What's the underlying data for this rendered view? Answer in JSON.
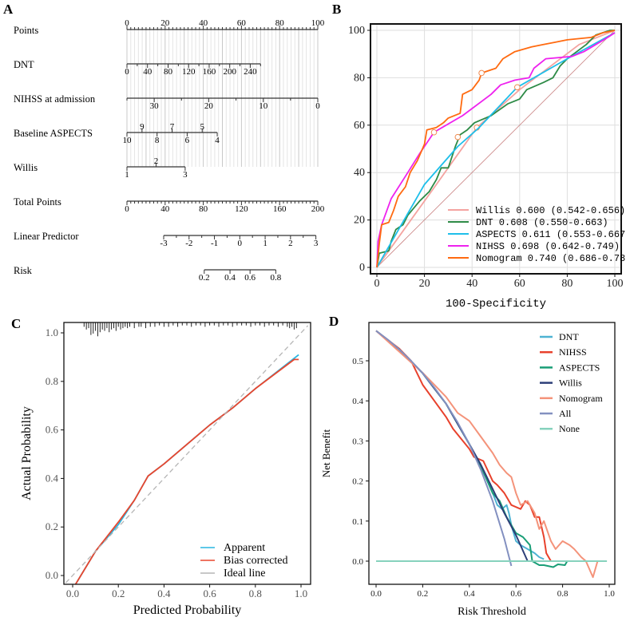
{
  "panels": {
    "a": "A",
    "b": "B",
    "c": "C",
    "d": "D"
  },
  "chart_data": [
    {
      "panel": "A",
      "type": "nomogram",
      "rows": [
        {
          "label": "Points",
          "scale": "points",
          "from": [
            0,
            100
          ],
          "to": [
            0,
            100
          ],
          "ticks_step": 2,
          "labels": [
            0,
            20,
            40,
            60,
            80,
            100
          ],
          "label_side": "above"
        },
        {
          "label": "DNT",
          "scale": "points",
          "from": [
            0,
            260
          ],
          "to": [
            0,
            70
          ],
          "ticks_step": 20,
          "labels": [
            0,
            40,
            80,
            120,
            160,
            200,
            240
          ],
          "label_side": "below"
        },
        {
          "label": "NIHSS at admission",
          "scale": "points",
          "from": [
            35,
            0
          ],
          "to": [
            0,
            100
          ],
          "ticks_step": 5,
          "labels": [
            30,
            20,
            10,
            0
          ],
          "label_side": "below"
        },
        {
          "label": "Baseline ASPECTS",
          "scale": "points",
          "from": [
            10,
            4
          ],
          "to": [
            0,
            47.3
          ],
          "ticks_step": 1,
          "labels": [
            10,
            8,
            6,
            4
          ],
          "labels_above": [
            9,
            7,
            5
          ],
          "label_side": "below"
        },
        {
          "label": "Willis",
          "scale": "points",
          "from": [
            1,
            3
          ],
          "to": [
            0,
            30.5
          ],
          "ticks_step": 1,
          "labels": [
            1,
            3
          ],
          "labels_above": [
            2
          ],
          "label_side": "below"
        },
        {
          "label": "Total Points",
          "scale": "total",
          "from": [
            0,
            200
          ],
          "to": [
            0,
            200
          ],
          "ticks_step": 4,
          "labels": [
            0,
            40,
            80,
            120,
            160,
            200
          ],
          "label_side": "below"
        },
        {
          "label": "Linear Predictor",
          "scale": "total",
          "from": [
            -3,
            3
          ],
          "to": [
            38.5,
            198
          ],
          "ticks_step": 0.5,
          "labels": [
            -3,
            -2,
            -1,
            0,
            1,
            2,
            3
          ],
          "label_side": "below"
        },
        {
          "label": "Risk",
          "scale": "total",
          "ticks_explicit": [
            [
              0.2,
              81
            ],
            [
              0.4,
              108
            ],
            [
              0.6,
              129
            ],
            [
              0.8,
              156
            ]
          ],
          "labels": [
            "0.2",
            "0.4",
            "0.6",
            "0.8"
          ],
          "label_side": "below"
        }
      ]
    },
    {
      "panel": "B",
      "type": "line",
      "xlabel": "100-Specificity",
      "ylabel": "",
      "xlim": [
        0,
        100
      ],
      "ylim": [
        0,
        100
      ],
      "xticks": [
        0,
        20,
        40,
        60,
        80,
        100
      ],
      "yticks": [
        0,
        20,
        40,
        60,
        80,
        100
      ],
      "grid": true,
      "legend_position": "bottom-right",
      "reference_line": {
        "x": [
          0,
          100
        ],
        "y": [
          0,
          100
        ],
        "color": "#c98080"
      },
      "series": [
        {
          "name": "Willis",
          "legend": "Willis 0.600 (0.542-0.656)",
          "color": "#f4a3a0",
          "marker": [
            42,
            59
          ],
          "x": [
            0,
            25,
            42,
            60,
            85,
            100
          ],
          "y": [
            0,
            35,
            59,
            75,
            94,
            100
          ]
        },
        {
          "name": "DNT",
          "legend": "DNT 0.608 (0.550-0.663)",
          "color": "#2e8b47",
          "marker": [
            34,
            55
          ],
          "x": [
            0,
            1,
            5,
            6,
            8,
            11,
            13,
            18,
            22,
            25,
            27,
            30,
            33,
            35,
            38,
            41,
            48,
            55,
            60,
            63,
            70,
            74,
            77,
            80,
            84,
            88,
            92,
            98,
            100
          ],
          "y": [
            0,
            6,
            7,
            11,
            16,
            18,
            22,
            28,
            32,
            37,
            42,
            42,
            51,
            56,
            58,
            61,
            64,
            69,
            71,
            75,
            78,
            80,
            85,
            88,
            91,
            94,
            98,
            100,
            100
          ]
        },
        {
          "name": "ASPECTS",
          "legend": "ASPECTS 0.611 (0.553-0.667)",
          "color": "#1ebfea",
          "marker": [
            59,
            76
          ],
          "x": [
            0,
            20,
            34,
            43,
            59,
            80,
            100
          ],
          "y": [
            0,
            35,
            51,
            59,
            76,
            88,
            99
          ]
        },
        {
          "name": "NIHSS",
          "legend": "NIHSS 0.698 (0.642-0.749)",
          "color": "#ee22ee",
          "marker": [
            24,
            57
          ],
          "x": [
            0,
            0.5,
            2,
            6,
            13,
            18,
            24,
            36,
            48,
            52,
            58,
            64,
            66,
            71,
            82,
            87,
            92,
            97,
            100
          ],
          "y": [
            0,
            11,
            18,
            29,
            40,
            48,
            57,
            64,
            73,
            77,
            79,
            80,
            84,
            88,
            89,
            91,
            94,
            97,
            99
          ]
        },
        {
          "name": "Nomogram",
          "legend": "Nomogram 0.740 (0.686-0.789)",
          "color": "#ff6a10",
          "marker": [
            44,
            82
          ],
          "x": [
            0,
            1,
            2,
            5,
            7,
            9,
            12,
            14,
            17,
            20,
            21,
            25,
            28,
            30,
            35,
            36,
            40,
            43,
            44,
            50,
            53,
            58,
            65,
            70,
            75,
            80,
            90,
            95,
            100
          ],
          "y": [
            0,
            10,
            18,
            19,
            24,
            30,
            34,
            40,
            45,
            52,
            58,
            59,
            61,
            63,
            65,
            73,
            75,
            79,
            82,
            84,
            88,
            91,
            93,
            94,
            95,
            96,
            97,
            99,
            100
          ]
        }
      ]
    },
    {
      "panel": "C",
      "type": "line",
      "xlabel": "Predicted Probability",
      "ylabel": "Actual Probability",
      "xlim": [
        -0.03,
        1.03
      ],
      "ylim": [
        -0.04,
        1.04
      ],
      "xticks": [
        "0.0",
        "0.2",
        "0.4",
        "0.6",
        "0.8",
        "1.0"
      ],
      "yticks": [
        "0.0",
        "0.2",
        "0.4",
        "0.6",
        "0.8",
        "1.0"
      ],
      "grid": false,
      "legend_position": "bottom-right",
      "rug_x": [
        0.05,
        0.06,
        0.07,
        0.08,
        0.09,
        0.1,
        0.11,
        0.12,
        0.13,
        0.14,
        0.15,
        0.16,
        0.17,
        0.18,
        0.19,
        0.2,
        0.21,
        0.22,
        0.23,
        0.24,
        0.25,
        0.27,
        0.29,
        0.3,
        0.32,
        0.34,
        0.36,
        0.38,
        0.4,
        0.42,
        0.44,
        0.46,
        0.48,
        0.5,
        0.52,
        0.54,
        0.56,
        0.58,
        0.6,
        0.62,
        0.64,
        0.66,
        0.68,
        0.7,
        0.72,
        0.74,
        0.76,
        0.78,
        0.8,
        0.82,
        0.84,
        0.86,
        0.88,
        0.9,
        0.92,
        0.94,
        0.95,
        0.96,
        0.97,
        0.98
      ],
      "rug_count": [
        2,
        4,
        3,
        8,
        7,
        5,
        9,
        6,
        4,
        5,
        3,
        6,
        4,
        3,
        5,
        2,
        4,
        3,
        2,
        3,
        2,
        3,
        2,
        2,
        3,
        2,
        2,
        1,
        2,
        2,
        1,
        2,
        1,
        1,
        2,
        1,
        1,
        2,
        1,
        1,
        2,
        1,
        1,
        2,
        1,
        1,
        1,
        2,
        1,
        1,
        2,
        1,
        1,
        2,
        1,
        2,
        3,
        2,
        4,
        3
      ],
      "series": [
        {
          "name": "Apparent",
          "color": "#29b5e0",
          "x": [
            0.01,
            0.1,
            0.2,
            0.27,
            0.33,
            0.4,
            0.5,
            0.6,
            0.7,
            0.8,
            0.99
          ],
          "y": [
            -0.04,
            0.1,
            0.21,
            0.31,
            0.41,
            0.46,
            0.54,
            0.62,
            0.69,
            0.77,
            0.91
          ]
        },
        {
          "name": "Bias corrected",
          "color": "#e8462e",
          "x": [
            0.01,
            0.1,
            0.2,
            0.27,
            0.33,
            0.4,
            0.5,
            0.6,
            0.7,
            0.8,
            0.97,
            0.99
          ],
          "y": [
            -0.04,
            0.1,
            0.22,
            0.31,
            0.41,
            0.46,
            0.54,
            0.62,
            0.69,
            0.77,
            0.89,
            0.89
          ]
        },
        {
          "name": "Ideal line",
          "color": "#b5b5b5",
          "dashed": true,
          "x": [
            -0.03,
            1.03
          ],
          "y": [
            -0.03,
            1.03
          ]
        }
      ]
    },
    {
      "panel": "D",
      "type": "line",
      "xlabel": "Risk Threshold",
      "ylabel": "Net Benefit",
      "xlim": [
        -0.03,
        1.02
      ],
      "ylim": [
        -0.058,
        0.596
      ],
      "xticks": [
        "0.0",
        "0.2",
        "0.4",
        "0.6",
        "0.8",
        "1.0"
      ],
      "yticks": [
        "0.0",
        "0.1",
        "0.2",
        "0.3",
        "0.4",
        "0.5"
      ],
      "grid": false,
      "legend_position": "top-right",
      "series": [
        {
          "name": "DNT",
          "color": "#4eb3d3",
          "x": [
            0,
            0.1,
            0.2,
            0.3,
            0.4,
            0.45,
            0.47,
            0.5,
            0.52,
            0.54,
            0.56,
            0.57,
            0.58,
            0.6,
            0.62,
            0.65,
            0.68,
            0.7,
            0.72
          ],
          "y": [
            0.575,
            0.528,
            0.469,
            0.393,
            0.292,
            0.235,
            0.21,
            0.17,
            0.14,
            0.13,
            0.14,
            0.12,
            0.09,
            0.05,
            0.04,
            0.03,
            0.02,
            0.01,
            0.005
          ]
        },
        {
          "name": "NIHSS",
          "color": "#e8412c",
          "x": [
            0,
            0.1,
            0.15,
            0.2,
            0.25,
            0.3,
            0.33,
            0.4,
            0.42,
            0.46,
            0.5,
            0.52,
            0.55,
            0.58,
            0.62,
            0.64,
            0.66,
            0.68,
            0.7,
            0.72,
            0.73,
            0.75
          ],
          "y": [
            0.575,
            0.53,
            0.5,
            0.44,
            0.4,
            0.36,
            0.33,
            0.28,
            0.26,
            0.25,
            0.2,
            0.19,
            0.17,
            0.14,
            0.13,
            0.15,
            0.14,
            0.11,
            0.11,
            0.06,
            0.02,
            0.0
          ]
        },
        {
          "name": "ASPECTS",
          "color": "#1a9e77",
          "x": [
            0,
            0.1,
            0.2,
            0.3,
            0.4,
            0.45,
            0.47,
            0.5,
            0.53,
            0.56,
            0.6,
            0.63,
            0.66,
            0.67,
            0.7,
            0.72,
            0.76,
            0.78,
            0.81,
            0.82
          ],
          "y": [
            0.575,
            0.528,
            0.469,
            0.393,
            0.292,
            0.235,
            0.21,
            0.17,
            0.15,
            0.11,
            0.07,
            0.06,
            0.04,
            0.0,
            -0.01,
            -0.01,
            -0.015,
            -0.008,
            -0.01,
            0.0
          ]
        },
        {
          "name": "Willis",
          "color": "#2c3e78",
          "x": [
            0,
            0.1,
            0.2,
            0.3,
            0.4,
            0.45,
            0.5,
            0.55,
            0.6,
            0.65
          ],
          "y": [
            0.575,
            0.528,
            0.469,
            0.393,
            0.292,
            0.24,
            0.18,
            0.12,
            0.065,
            0.0
          ]
        },
        {
          "name": "Nomogram",
          "color": "#f4937a",
          "x": [
            0,
            0.2,
            0.25,
            0.3,
            0.35,
            0.4,
            0.45,
            0.5,
            0.53,
            0.56,
            0.58,
            0.6,
            0.62,
            0.65,
            0.68,
            0.7,
            0.72,
            0.75,
            0.77,
            0.8,
            0.83,
            0.85,
            0.88,
            0.9,
            0.93,
            0.95
          ],
          "y": [
            0.575,
            0.47,
            0.44,
            0.41,
            0.37,
            0.35,
            0.31,
            0.27,
            0.24,
            0.22,
            0.21,
            0.17,
            0.14,
            0.15,
            0.12,
            0.08,
            0.1,
            0.05,
            0.03,
            0.05,
            0.04,
            0.03,
            0.01,
            0.0,
            -0.04,
            0.0
          ]
        },
        {
          "name": "All",
          "color": "#8390c0",
          "x": [
            0,
            0.05,
            0.1,
            0.15,
            0.2,
            0.25,
            0.3,
            0.35,
            0.4,
            0.45,
            0.5,
            0.55,
            0.58
          ],
          "y": [
            0.575,
            0.553,
            0.528,
            0.5,
            0.469,
            0.433,
            0.393,
            0.346,
            0.292,
            0.227,
            0.15,
            0.056,
            -0.012
          ]
        },
        {
          "name": "None",
          "color": "#86d2bd",
          "x": [
            0,
            0.99
          ],
          "y": [
            0,
            0
          ]
        }
      ]
    }
  ]
}
